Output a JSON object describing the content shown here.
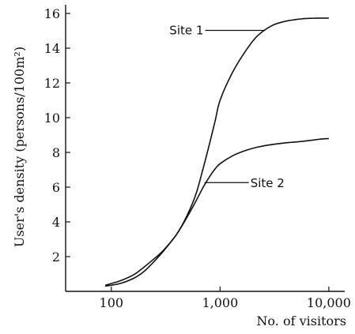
{
  "chart_data": {
    "type": "line",
    "title": "",
    "xlabel": "No. of visitors",
    "ylabel": "User's density (persons/100m²)",
    "x_scale": "log",
    "xlim": [
      38,
      14000
    ],
    "ylim": [
      0,
      16.5
    ],
    "x_ticks": [
      100,
      1000,
      10000
    ],
    "x_tick_labels": [
      "100",
      "1,000",
      "10,000"
    ],
    "y_ticks": [
      2,
      4,
      6,
      8,
      10,
      12,
      14,
      16
    ],
    "y_tick_labels": [
      "2",
      "4",
      "6",
      "8",
      "10",
      "12",
      "14",
      "16"
    ],
    "grid": false,
    "series": [
      {
        "name": "Site 1",
        "x": [
          88,
          120,
          160,
          200,
          250,
          300,
          400,
          500,
          600,
          700,
          800,
          900,
          1000,
          1300,
          1700,
          2200,
          3000,
          4000,
          5000,
          6000,
          7000,
          8000,
          10000
        ],
        "y": [
          0.35,
          0.6,
          0.95,
          1.4,
          1.9,
          2.35,
          3.3,
          4.4,
          5.6,
          7.1,
          8.5,
          9.8,
          11.0,
          12.6,
          13.8,
          14.7,
          15.3,
          15.55,
          15.65,
          15.7,
          15.72,
          15.73,
          15.73
        ]
      },
      {
        "name": "Site 2",
        "x": [
          88,
          120,
          160,
          200,
          250,
          300,
          400,
          500,
          600,
          700,
          800,
          900,
          1000,
          1300,
          1700,
          2200,
          3000,
          4000,
          5000,
          6000,
          7000,
          8000,
          10000
        ],
        "y": [
          0.3,
          0.45,
          0.75,
          1.15,
          1.75,
          2.3,
          3.3,
          4.3,
          5.2,
          6.0,
          6.6,
          7.05,
          7.35,
          7.8,
          8.1,
          8.3,
          8.45,
          8.55,
          8.6,
          8.65,
          8.7,
          8.75,
          8.8
        ]
      }
    ],
    "annotations": [
      {
        "text": "Site 1",
        "series": "Site 1",
        "at_x": 2600
      },
      {
        "text": "Site 2",
        "series": "Site 2",
        "at_x": 720
      }
    ]
  }
}
